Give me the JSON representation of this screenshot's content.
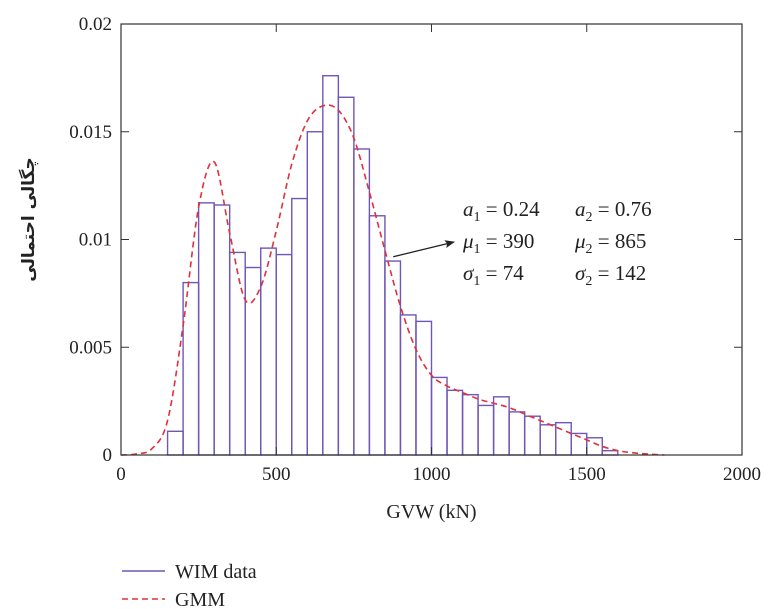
{
  "chart_data": {
    "type": "bar",
    "xlabel": "GVW (kN)",
    "ylabel": "چگالی احتمالی",
    "xlim": [
      0,
      2000
    ],
    "ylim": [
      0,
      0.02
    ],
    "xticks": [
      "0",
      "500",
      "1000",
      "1500",
      "2000"
    ],
    "yticks": [
      "0",
      "0.005",
      "0.01",
      "0.015",
      "0.02"
    ],
    "grid": false,
    "legend_position": "bottom-left",
    "colors": {
      "histogram": "#6f57b5",
      "gmm": "#e0303a"
    },
    "series": [
      {
        "name": "WIM data",
        "type": "histogram",
        "bin_width": 50,
        "bin_starts": [
          150,
          200,
          250,
          300,
          350,
          400,
          450,
          500,
          550,
          600,
          650,
          700,
          750,
          800,
          850,
          900,
          950,
          1000,
          1050,
          1100,
          1150,
          1200,
          1250,
          1300,
          1350,
          1400,
          1450,
          1500,
          1550
        ],
        "values": [
          0.0011,
          0.008,
          0.0117,
          0.0116,
          0.0094,
          0.0087,
          0.0096,
          0.0093,
          0.0119,
          0.015,
          0.0176,
          0.0166,
          0.0142,
          0.0111,
          0.009,
          0.0065,
          0.0062,
          0.0036,
          0.003,
          0.0028,
          0.0023,
          0.0027,
          0.002,
          0.0018,
          0.0014,
          0.0015,
          0.001,
          0.0008,
          0.0002
        ]
      },
      {
        "name": "GMM",
        "type": "line",
        "style": "dashed",
        "x": [
          0,
          50,
          100,
          150,
          200,
          250,
          300,
          350,
          400,
          450,
          500,
          550,
          600,
          650,
          700,
          750,
          800,
          850,
          900,
          950,
          1000,
          1050,
          1100,
          1150,
          1200,
          1250,
          1300,
          1350,
          1400,
          1450,
          1500,
          1550,
          1600,
          1650,
          1700,
          1750
        ],
        "values": [
          0,
          5e-05,
          0.0003,
          0.0016,
          0.006,
          0.0115,
          0.0136,
          0.0103,
          0.0072,
          0.0078,
          0.0104,
          0.0135,
          0.0155,
          0.0162,
          0.016,
          0.0147,
          0.0122,
          0.0095,
          0.0069,
          0.0049,
          0.0037,
          0.0032,
          0.0029,
          0.0026,
          0.0024,
          0.0022,
          0.0019,
          0.0016,
          0.0013,
          0.001,
          0.0007,
          0.0004,
          0.0002,
          0.0001,
          4e-05,
          0
        ]
      }
    ],
    "annotation": {
      "lines": [
        [
          {
            "sym": "a",
            "sub": "1",
            "val": " = 0.24"
          },
          {
            "sym": "a",
            "sub": "2",
            "val": " = 0.76"
          }
        ],
        [
          {
            "sym": "μ",
            "sub": "1",
            "val": " = 390"
          },
          {
            "sym": "μ",
            "sub": "2",
            "val": " = 865"
          }
        ],
        [
          {
            "sym": "σ",
            "sub": "1",
            "val": " = 74"
          },
          {
            "sym": "σ",
            "sub": "2",
            "val": " = 142"
          }
        ]
      ],
      "arrow_target_x": 880,
      "arrow_target_y": 0.0092
    }
  }
}
